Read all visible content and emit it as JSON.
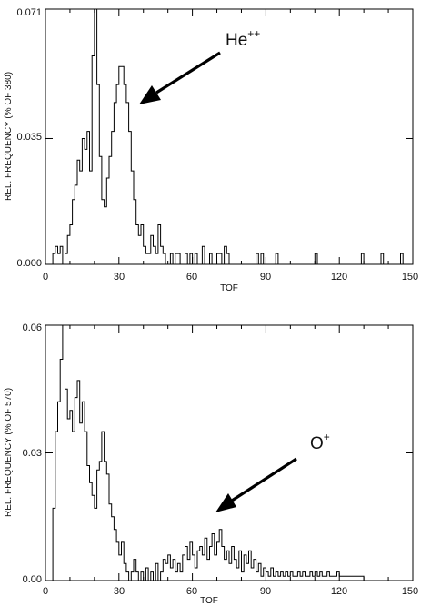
{
  "chart_data": [
    {
      "type": "histogram",
      "xlabel": "TOF",
      "ylabel": "REL. FREQUENCY (% OF 380)",
      "xlim": [
        0,
        150
      ],
      "ylim": [
        0,
        0.071
      ],
      "xticks": [
        "0",
        "30",
        "60",
        "90",
        "120",
        "150"
      ],
      "yticks": [
        "0.000",
        "0.035",
        "0.071"
      ],
      "ytick_values": [
        0,
        0.035,
        0.071
      ],
      "bin_width": 1,
      "bin_start": 3,
      "values": [
        0.003,
        0.005,
        0.003,
        0.005,
        0,
        0.003,
        0.008,
        0.011,
        0.018,
        0.022,
        0.029,
        0.026,
        0.035,
        0.032,
        0.037,
        0.026,
        0.058,
        0.071,
        0.05,
        0.03,
        0.018,
        0.016,
        0.024,
        0.03,
        0.037,
        0.045,
        0.05,
        0.055,
        0.055,
        0.05,
        0.045,
        0.037,
        0.026,
        0.018,
        0.011,
        0.008,
        0.011,
        0.005,
        0.003,
        0.003,
        0.008,
        0.005,
        0.003,
        0.011,
        0.005,
        0.003,
        0,
        0,
        0.003,
        0,
        0.003,
        0.003,
        0,
        0,
        0.003,
        0,
        0.003,
        0,
        0.003,
        0,
        0,
        0.005,
        0,
        0,
        0.003,
        0,
        0,
        0.003,
        0.003,
        0,
        0.005,
        0.003,
        0,
        0,
        0,
        0,
        0,
        0,
        0,
        0,
        0,
        0,
        0,
        0.003,
        0,
        0.003,
        0,
        0,
        0,
        0,
        0,
        0.003,
        0,
        0,
        0,
        0,
        0,
        0,
        0,
        0,
        0,
        0,
        0,
        0,
        0,
        0,
        0,
        0.003,
        0,
        0,
        0,
        0,
        0,
        0,
        0,
        0,
        0,
        0,
        0,
        0,
        0,
        0,
        0,
        0,
        0,
        0,
        0.003,
        0,
        0,
        0,
        0,
        0,
        0,
        0,
        0.003,
        0,
        0,
        0,
        0,
        0,
        0,
        0,
        0.003
      ],
      "annotation": {
        "text": "He",
        "superscript": "++"
      }
    },
    {
      "type": "histogram",
      "xlabel": "TOF",
      "ylabel": "REL. FREQUENCY (% OF 570)",
      "xlim": [
        0,
        150
      ],
      "ylim": [
        0,
        0.06
      ],
      "xticks": [
        "0",
        "30",
        "60",
        "90",
        "120",
        "150"
      ],
      "yticks": [
        "0.00",
        "0.03",
        "0.06"
      ],
      "ytick_values": [
        0,
        0.03,
        0.06
      ],
      "bin_width": 1,
      "bin_start": 3,
      "values": [
        0.017,
        0.035,
        0.042,
        0.052,
        0.06,
        0.045,
        0.038,
        0.04,
        0.035,
        0.043,
        0.047,
        0.037,
        0.042,
        0.035,
        0.027,
        0.023,
        0.02,
        0.017,
        0.026,
        0.028,
        0.035,
        0.028,
        0.025,
        0.018,
        0.015,
        0.012,
        0.009,
        0.006,
        0.009,
        0.004,
        0.002,
        0,
        0.002,
        0.005,
        0.002,
        0,
        0.002,
        0,
        0.003,
        0,
        0.002,
        0,
        0.004,
        0,
        0.002,
        0.005,
        0.004,
        0.006,
        0.003,
        0.005,
        0.002,
        0.004,
        0.002,
        0.006,
        0.008,
        0.005,
        0.009,
        0.006,
        0.003,
        0.007,
        0.008,
        0.006,
        0.01,
        0.005,
        0.008,
        0.011,
        0.006,
        0.009,
        0.012,
        0.008,
        0.005,
        0.007,
        0.004,
        0.008,
        0.005,
        0.003,
        0.007,
        0.002,
        0.006,
        0.004,
        0.007,
        0.003,
        0.005,
        0.002,
        0.004,
        0.001,
        0.003,
        0.002,
        0.001,
        0.003,
        0.001,
        0.002,
        0.001,
        0.002,
        0.001,
        0.002,
        0.001,
        0.002,
        0.001,
        0.001,
        0.002,
        0.001,
        0.002,
        0.001,
        0.001,
        0.002,
        0.001,
        0.002,
        0.001,
        0.002,
        0.001,
        0.001,
        0.002,
        0.001,
        0.001,
        0.001,
        0.002,
        0.001,
        0.001,
        0.001,
        0.001,
        0.001,
        0.001,
        0.001,
        0.001,
        0.001,
        0.001
      ],
      "annotation": {
        "text": "O",
        "superscript": "+"
      }
    }
  ]
}
